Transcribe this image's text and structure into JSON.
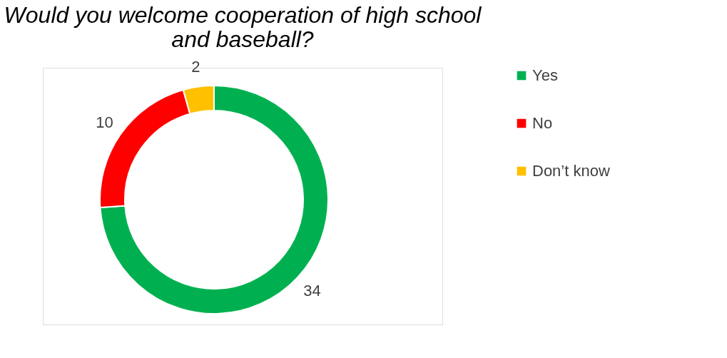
{
  "chart_data": {
    "type": "donut",
    "title": [
      "Would you welcome cooperation of high school",
      "and baseball?"
    ],
    "categories": [
      "Yes",
      "No",
      "Don’t know"
    ],
    "values": [
      34,
      10,
      2
    ],
    "colors": [
      "#00b050",
      "#ff0000",
      "#ffc000"
    ],
    "data_labels": true,
    "legend": "right"
  }
}
